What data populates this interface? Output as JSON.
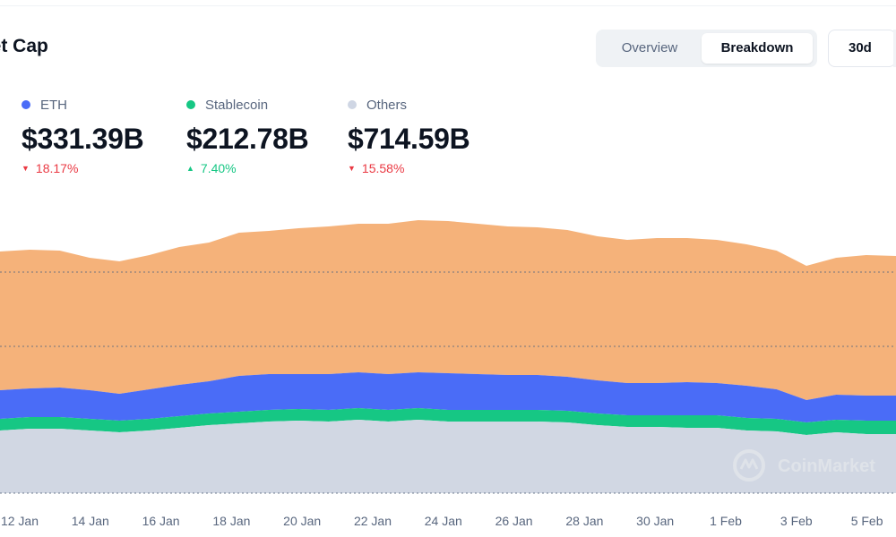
{
  "header": {
    "title": "ket Cap",
    "tabs": [
      {
        "label": "Overview",
        "active": false
      },
      {
        "label": "Breakdown",
        "active": true
      }
    ],
    "range_label": "30d"
  },
  "stats": [
    {
      "name": "ETH",
      "value": "$331.39B",
      "change": "18.17%",
      "direction": "down",
      "color": "#4a6cf7"
    },
    {
      "name": "Stablecoin",
      "value": "$212.78B",
      "change": "7.40%",
      "direction": "up",
      "color": "#16c784"
    },
    {
      "name": "Others",
      "value": "$714.59B",
      "change": "15.58%",
      "direction": "down",
      "color": "#cfd6e4"
    }
  ],
  "watermark": "CoinMarket",
  "colors": {
    "eth": "#4a6cf7",
    "stablecoin": "#16c784",
    "others": "#d1d7e3",
    "btc_area": "#f5b27a",
    "grid": "#58667e",
    "up": "#16c784",
    "down": "#ea3943"
  },
  "chart_data": {
    "type": "area",
    "stacked": true,
    "x_tick_labels": [
      "12 Jan",
      "14 Jan",
      "16 Jan",
      "18 Jan",
      "20 Jan",
      "22 Jan",
      "24 Jan",
      "26 Jan",
      "28 Jan",
      "30 Jan",
      "1 Feb",
      "3 Feb",
      "5 Feb"
    ],
    "grid": "horizontal dotted",
    "legend": "top",
    "series": [
      {
        "name": "Others",
        "color": "#d1d7e3",
        "values": [
          70,
          72,
          72,
          70,
          68,
          70,
          73,
          76,
          78,
          80,
          81,
          80,
          82,
          80,
          82,
          80,
          80,
          80,
          80,
          79,
          76,
          74,
          74,
          73,
          73,
          70,
          69,
          65,
          68,
          66,
          66
        ]
      },
      {
        "name": "Stablecoin",
        "values": [
          13,
          13,
          13,
          13,
          13,
          13,
          13,
          13,
          13,
          13,
          13,
          13,
          13,
          13,
          13,
          13,
          13,
          13,
          13,
          13,
          13,
          13,
          13,
          14,
          14,
          14,
          14,
          14,
          14,
          15,
          15
        ],
        "color": "#16c784"
      },
      {
        "name": "ETH",
        "values": [
          32,
          32,
          33,
          32,
          30,
          33,
          35,
          36,
          40,
          40,
          39,
          40,
          40,
          40,
          40,
          41,
          40,
          39,
          39,
          38,
          37,
          36,
          36,
          37,
          36,
          36,
          33,
          25,
          28,
          28,
          28
        ],
        "color": "#4a6cf7"
      },
      {
        "color": "#f5b27a",
        "values": [
          155,
          155,
          153,
          148,
          148,
          150,
          154,
          155,
          160,
          160,
          163,
          165,
          166,
          168,
          170,
          170,
          168,
          166,
          165,
          164,
          161,
          160,
          162,
          161,
          160,
          158,
          155,
          150,
          153,
          157,
          156
        ]
      }
    ]
  }
}
